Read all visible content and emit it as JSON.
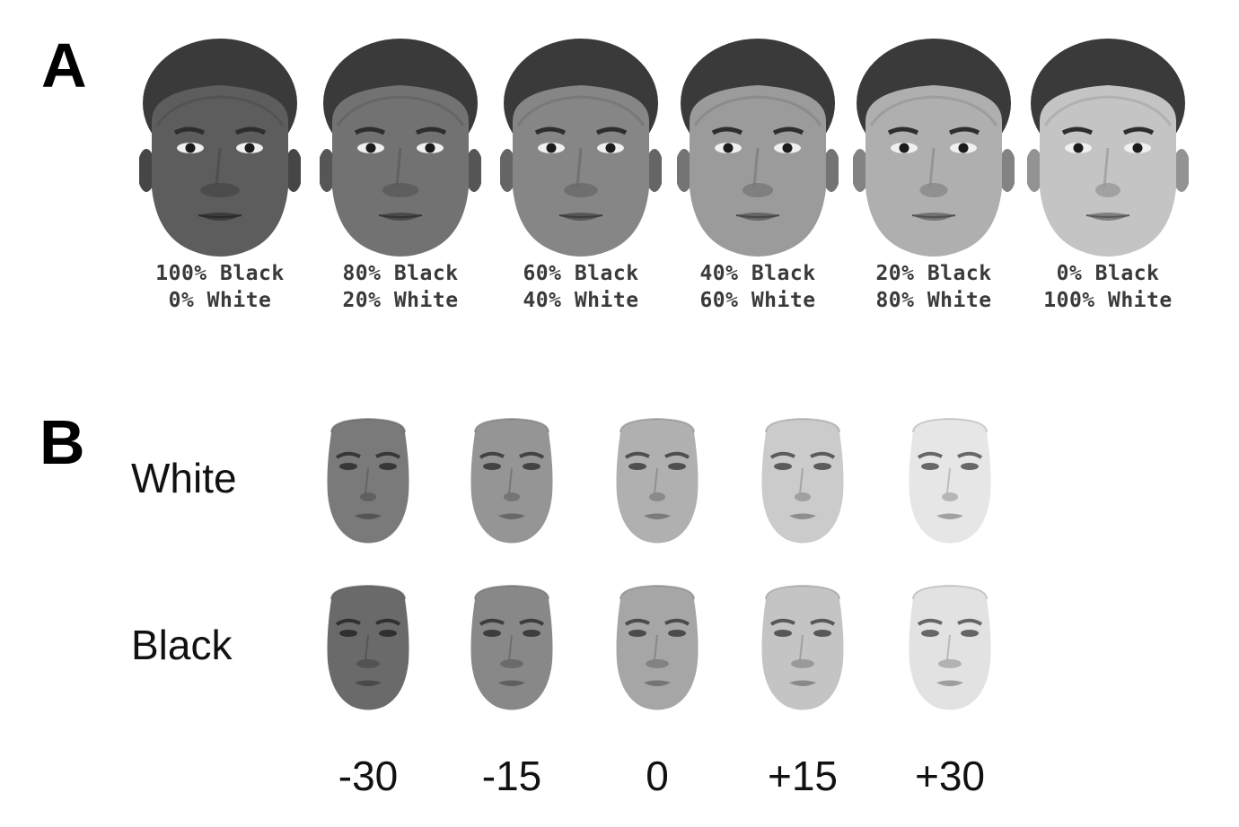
{
  "panel_a": {
    "letter": "A",
    "faces": [
      {
        "line1": "100% Black",
        "line2": "0% White"
      },
      {
        "line1": "80% Black",
        "line2": "20% White"
      },
      {
        "line1": "60% Black",
        "line2": "40% White"
      },
      {
        "line1": "40% Black",
        "line2": "60% White"
      },
      {
        "line1": "20% Black",
        "line2": "80% White"
      },
      {
        "line1": "0% Black",
        "line2": "100% White"
      }
    ]
  },
  "panel_b": {
    "letter": "B",
    "rows": [
      {
        "label": "White"
      },
      {
        "label": "Black"
      }
    ],
    "luminance_levels": [
      "-30",
      "-15",
      "0",
      "+15",
      "+30"
    ]
  },
  "colors": {
    "skin_dark": "#6e6e6e",
    "skin_light": "#cfcfcf",
    "hair": "#3a3a3a",
    "text": "#111111"
  }
}
